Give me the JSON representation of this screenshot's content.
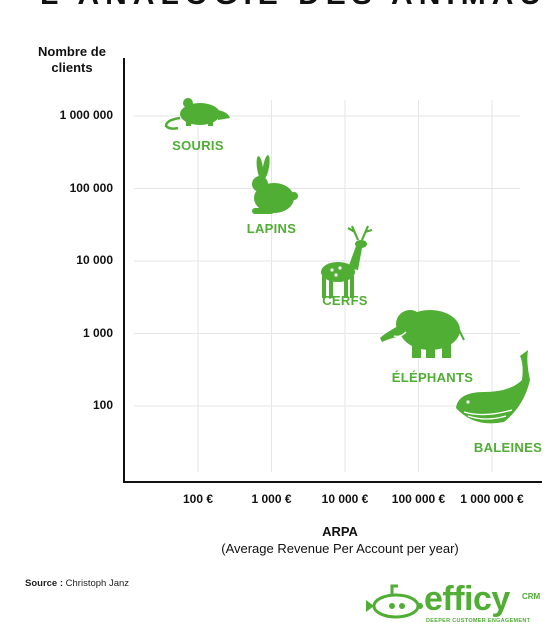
{
  "top_banner": "L'ANALOGIE DES ANIMAUX",
  "chart_data": {
    "type": "scatter",
    "title": "",
    "ylabel": "Nombre de clients",
    "xlabel": "ARPA",
    "xlabel_sub": "(Average Revenue Per Account per year)",
    "x_scale": "log",
    "y_scale": "log",
    "grid": true,
    "x_ticks": [
      "100 €",
      "1 000 €",
      "10 000 €",
      "100 000 €",
      "1 000 000 €"
    ],
    "y_ticks": [
      "1 000 000",
      "100 000",
      "10 000",
      "1 000",
      "100"
    ],
    "points": [
      {
        "label": "SOURIS",
        "icon": "mouse-icon",
        "x": 100,
        "y": 1000000
      },
      {
        "label": "LAPINS",
        "icon": "rabbit-icon",
        "x": 1000,
        "y": 100000
      },
      {
        "label": "CERFS",
        "icon": "deer-icon",
        "x": 10000,
        "y": 10000
      },
      {
        "label": "ÉLÉPHANTS",
        "icon": "elephant-icon",
        "x": 100000,
        "y": 1000
      },
      {
        "label": "BALEINES",
        "icon": "whale-icon",
        "x": 1000000,
        "y": 100
      }
    ],
    "accent_color": "#4fae33",
    "grid_color": "#e6e6e6"
  },
  "source": {
    "prefix": "Source :",
    "name": "Christoph Janz"
  },
  "logo": {
    "word": "efficy",
    "crm": "CRM",
    "tagline": "DEEPER CUSTOMER ENGAGEMENT",
    "icon": "submarine-icon"
  }
}
